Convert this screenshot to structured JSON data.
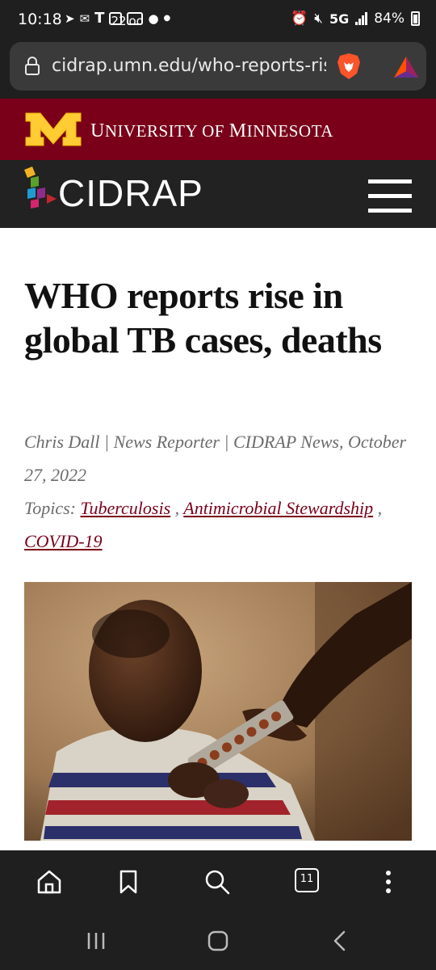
{
  "status_bar": {
    "time": "10:18",
    "network": "5G",
    "battery": "84%",
    "left_icons": [
      "send-icon",
      "mail-icon",
      "t-mobile-icon",
      "calendar-22-icon",
      "voicemail-icon",
      "reddit-icon",
      "dot-icon"
    ],
    "calendar_day": "22",
    "right_icons": [
      "alarm-icon",
      "mute-icon",
      "signal-icon",
      "battery-icon"
    ]
  },
  "browser": {
    "url": "cidrap.umn.edu/who-reports-rise-in-global-tb-cases-deaths",
    "tab_count": "11"
  },
  "umn_banner": {
    "name_prefix": "U",
    "name_rest": "NIVERSITY OF ",
    "name_m": "M",
    "name_end": "INNESOTA",
    "maroon": "#7a0019",
    "gold": "#ffcc33"
  },
  "site": {
    "name": "CIDRAP"
  },
  "article": {
    "headline": "WHO reports rise in global TB cases, deaths",
    "byline": "Chris Dall | News Reporter | CIDRAP News, October 27, 2022",
    "topics_label": "Topics:",
    "topics": [
      "Tuberculosis",
      "Antimicrobial Stewardship",
      "COVID-19"
    ],
    "topic_separator": " , "
  }
}
